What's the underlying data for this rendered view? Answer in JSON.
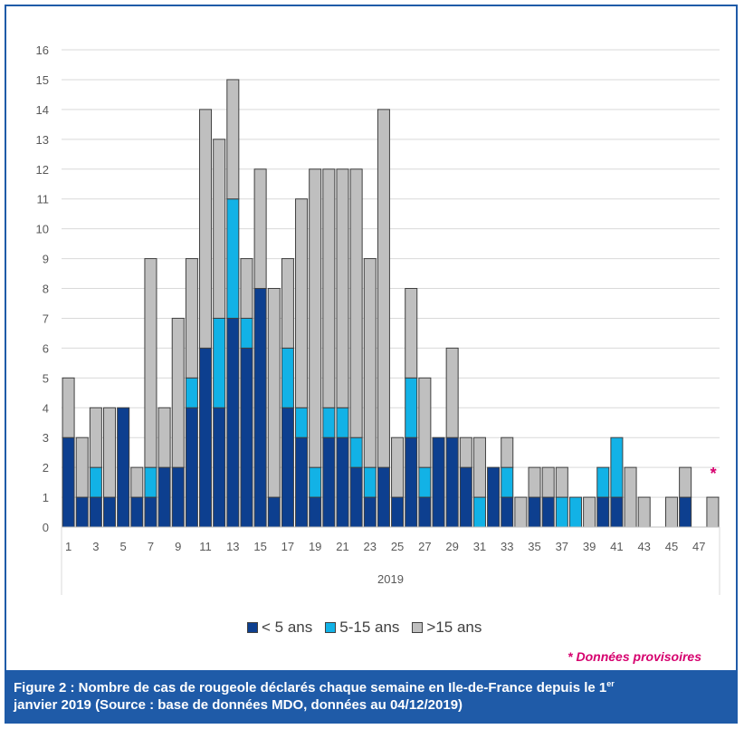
{
  "chart_data": {
    "type": "bar",
    "stacked": true,
    "categories": [
      "1",
      "2",
      "3",
      "4",
      "5",
      "6",
      "7",
      "8",
      "9",
      "10",
      "11",
      "12",
      "13",
      "14",
      "15",
      "16",
      "17",
      "18",
      "19",
      "20",
      "21",
      "22",
      "23",
      "24",
      "25",
      "26",
      "27",
      "28",
      "29",
      "30",
      "31",
      "32",
      "33",
      "34",
      "35",
      "36",
      "37",
      "38",
      "39",
      "40",
      "41",
      "42",
      "43",
      "44",
      "45",
      "46",
      "47",
      "48"
    ],
    "tick_labels": [
      "1",
      "3",
      "5",
      "7",
      "9",
      "11",
      "13",
      "15",
      "17",
      "19",
      "21",
      "23",
      "25",
      "27",
      "29",
      "31",
      "33",
      "35",
      "37",
      "39",
      "41",
      "43",
      "45",
      "47"
    ],
    "xlabel": "2019",
    "ylim": [
      0,
      16
    ],
    "yticks": [
      "0",
      "1",
      "2",
      "3",
      "4",
      "5",
      "6",
      "7",
      "8",
      "9",
      "10",
      "11",
      "12",
      "13",
      "14",
      "15",
      "16"
    ],
    "grid": true,
    "series": [
      {
        "name": "< 5 ans",
        "color": "#0d3f8f",
        "values": [
          3,
          1,
          1,
          1,
          4,
          1,
          1,
          2,
          2,
          4,
          6,
          4,
          7,
          6,
          8,
          1,
          4,
          3,
          1,
          3,
          3,
          2,
          1,
          2,
          1,
          3,
          1,
          3,
          3,
          2,
          0,
          2,
          1,
          0,
          1,
          1,
          0,
          0,
          0,
          1,
          1,
          0,
          0,
          0,
          0,
          1,
          0,
          0
        ]
      },
      {
        "name": "5-15 ans",
        "color": "#12b2e6",
        "values": [
          0,
          0,
          1,
          0,
          0,
          0,
          1,
          0,
          0,
          1,
          0,
          3,
          4,
          1,
          0,
          0,
          2,
          1,
          1,
          1,
          1,
          1,
          1,
          0,
          0,
          2,
          1,
          0,
          0,
          0,
          1,
          0,
          1,
          0,
          0,
          0,
          1,
          1,
          0,
          1,
          2,
          0,
          0,
          0,
          0,
          0,
          0,
          0
        ]
      },
      {
        "name": ">15 ans",
        "color": "#bfbfbf",
        "values": [
          2,
          2,
          2,
          3,
          0,
          1,
          7,
          2,
          5,
          4,
          8,
          6,
          4,
          2,
          4,
          7,
          3,
          7,
          10,
          8,
          8,
          9,
          7,
          12,
          2,
          3,
          3,
          0,
          3,
          1,
          2,
          0,
          1,
          1,
          1,
          1,
          1,
          0,
          1,
          0,
          0,
          2,
          1,
          0,
          1,
          1,
          0,
          1
        ]
      }
    ],
    "legend_position": "bottom",
    "annotation": "*"
  },
  "legend": [
    {
      "label": "< 5 ans",
      "color": "#0d3f8f"
    },
    {
      "label": "5-15 ans",
      "color": "#12b2e6"
    },
    {
      "label": ">15 ans",
      "color": "#bfbfbf"
    }
  ],
  "note": "* Données provisoires",
  "caption": {
    "part1": "Figure 2 : Nombre de cas de rougeole déclarés chaque semaine en Ile-de-France depuis le 1",
    "sup": "er",
    "part2": "janvier 2019 (Source : base de données MDO, données au 04/12/2019)"
  }
}
